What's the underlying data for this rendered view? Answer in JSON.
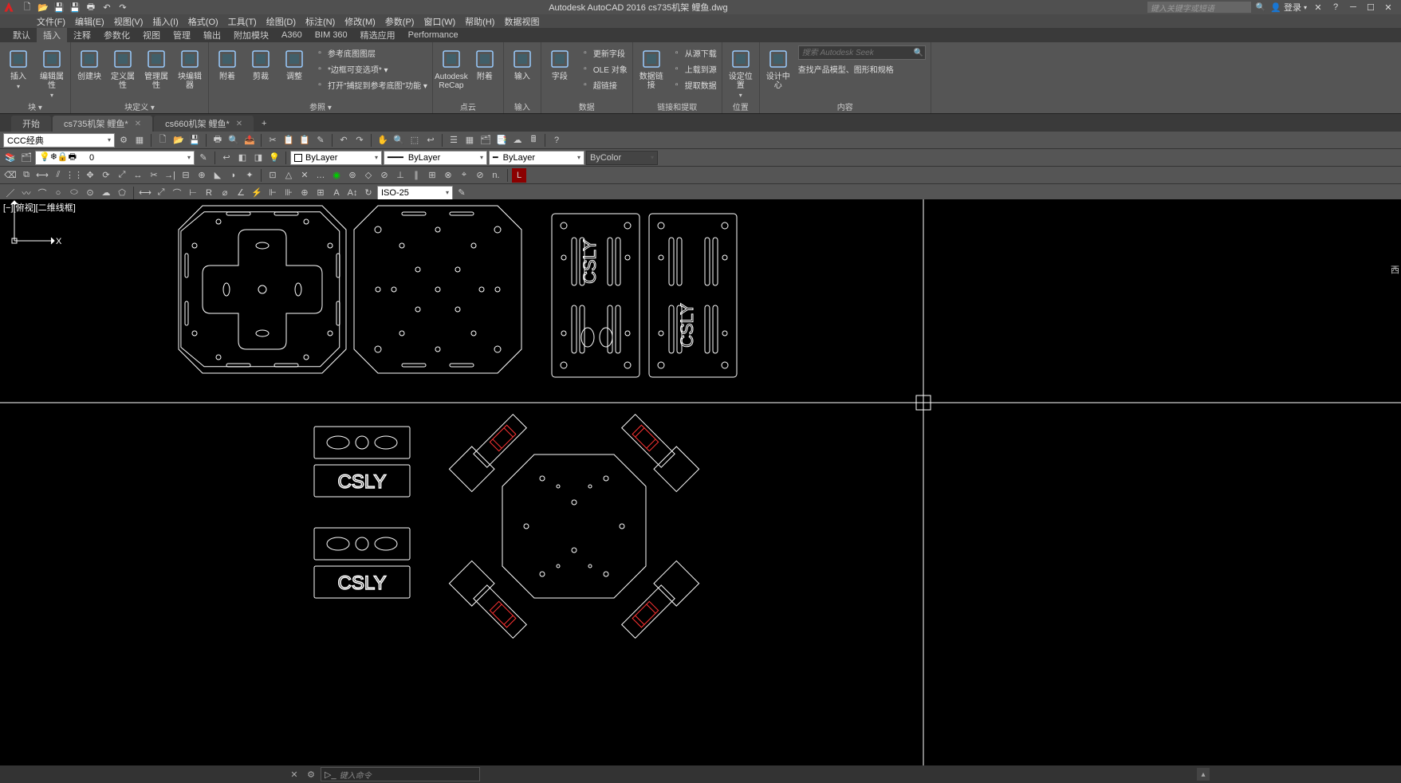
{
  "app": {
    "title_full": "Autodesk AutoCAD 2016    cs735机架 鲤鱼.dwg",
    "search_placeholder": "键入关键字或短语",
    "login_label": "登录"
  },
  "menu": {
    "items": [
      "文件(F)",
      "编辑(E)",
      "视图(V)",
      "插入(I)",
      "格式(O)",
      "工具(T)",
      "绘图(D)",
      "标注(N)",
      "修改(M)",
      "参数(P)",
      "窗口(W)",
      "帮助(H)",
      "数据视图"
    ]
  },
  "ribbon_tabs": {
    "items": [
      "默认",
      "插入",
      "注释",
      "参数化",
      "视图",
      "管理",
      "输出",
      "附加模块",
      "A360",
      "BIM 360",
      "精选应用",
      "Performance"
    ],
    "active_index": 1
  },
  "ribbon": {
    "panels": [
      {
        "name": "块",
        "label": "块 ▾",
        "items": [
          {
            "t": "big",
            "text": "插入",
            "drop": true
          },
          {
            "t": "big",
            "text": "编辑属性",
            "drop": true
          }
        ]
      },
      {
        "name": "块定义",
        "label": "块定义 ▾",
        "items": [
          {
            "t": "big",
            "text": "创建块"
          },
          {
            "t": "big",
            "text": "定义属性"
          },
          {
            "t": "big",
            "text": "管理属性"
          },
          {
            "t": "big",
            "text": "块编辑器"
          }
        ]
      },
      {
        "name": "参照",
        "label": "参照 ▾",
        "items": [
          {
            "t": "big",
            "text": "附着"
          },
          {
            "t": "big",
            "text": "剪裁"
          },
          {
            "t": "big",
            "text": "调整"
          },
          {
            "t": "col",
            "rows": [
              "参考底图图层",
              "*边框可变选项* ▾",
              "打开\"捕捉到参考底图\"功能 ▾"
            ]
          }
        ]
      },
      {
        "name": "点云",
        "label": "点云",
        "items": [
          {
            "t": "big",
            "text": "Autodesk ReCap"
          },
          {
            "t": "big",
            "text": "附着"
          }
        ]
      },
      {
        "name": "输入",
        "label": "输入",
        "items": [
          {
            "t": "big",
            "text": "输入"
          }
        ]
      },
      {
        "name": "数据",
        "label": "数据",
        "items": [
          {
            "t": "big",
            "text": "字段"
          },
          {
            "t": "col",
            "rows": [
              "更新字段",
              "OLE 对象",
              "超链接"
            ]
          }
        ]
      },
      {
        "name": "链接和提取",
        "label": "链接和提取",
        "items": [
          {
            "t": "big",
            "text": "数据链接"
          },
          {
            "t": "col",
            "rows": [
              "从源下载",
              "上载到源",
              "提取数据"
            ]
          }
        ]
      },
      {
        "name": "位置",
        "label": "位置",
        "items": [
          {
            "t": "big",
            "text": "设定位置",
            "drop": true
          }
        ]
      },
      {
        "name": "内容",
        "label": "内容",
        "items": [
          {
            "t": "big",
            "text": "设计中心"
          },
          {
            "t": "seek",
            "ph": "搜索 Autodesk Seek",
            "sub": "查找产品模型、图形和规格"
          }
        ]
      }
    ]
  },
  "doc_tabs": {
    "items": [
      {
        "label": "开始",
        "closable": false
      },
      {
        "label": "cs735机架 鲤鱼*",
        "closable": true,
        "active": true
      },
      {
        "label": "cs660机架 鲤鱼*",
        "closable": true
      }
    ]
  },
  "toolbars": {
    "workspace": "CCC经典",
    "layer_value": "0",
    "layer_combo": "ByLayer",
    "linetype": "ByLayer",
    "lineweight": "ByLayer",
    "color": "ByColor",
    "dimstyle": "ISO-25"
  },
  "canvas": {
    "viewport_label": "[−][俯视][二维线框]",
    "east_label": "西",
    "ucs_x": "X",
    "ucs_y": "Y"
  },
  "cmd": {
    "placeholder": "键入命令"
  },
  "colors": {
    "ribbon": "#555555",
    "canvas": "#000000",
    "stroke": "#ffffff",
    "red": "#ff3333"
  }
}
